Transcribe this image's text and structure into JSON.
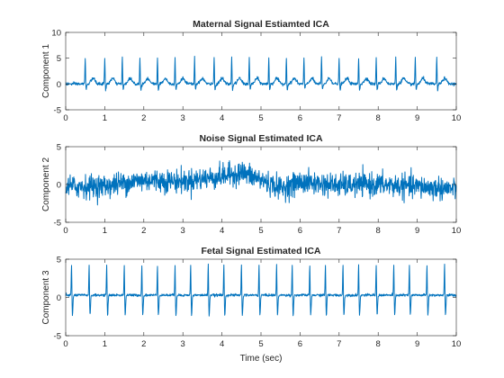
{
  "chart_data": [
    {
      "type": "line",
      "title": "Maternal Signal Estiamted ICA",
      "xlabel": "",
      "ylabel": "Component 1",
      "xlim": [
        0,
        10
      ],
      "ylim": [
        -5,
        10
      ],
      "xticks": [
        0,
        1,
        2,
        3,
        4,
        5,
        6,
        7,
        8,
        9,
        10
      ],
      "yticks": [
        -5,
        0,
        5,
        10
      ],
      "grid": false,
      "color": "#0072BD",
      "signal": {
        "kind": "ecg_peaks",
        "baseline": 0,
        "noise_sd": 0.15,
        "r_peak": 5.3,
        "s_dip": -1.2,
        "t_wave": 1.1,
        "beats_t": [
          0.5,
          1.0,
          1.45,
          1.9,
          2.35,
          2.8,
          3.3,
          3.8,
          4.25,
          4.7,
          5.2,
          5.65,
          6.1,
          6.55,
          7.0,
          7.5,
          7.95,
          8.45,
          8.95,
          9.5
        ]
      }
    },
    {
      "type": "line",
      "title": "Noise Signal Estimated ICA",
      "xlabel": "",
      "ylabel": "Component 2",
      "xlim": [
        0,
        10
      ],
      "ylim": [
        -5,
        5
      ],
      "xticks": [
        0,
        1,
        2,
        3,
        4,
        5,
        6,
        7,
        8,
        9,
        10
      ],
      "yticks": [
        -5,
        0,
        5
      ],
      "grid": false,
      "color": "#0072BD",
      "signal": {
        "kind": "noise",
        "noise_sd": 0.75,
        "trend_t": [
          0,
          1,
          2,
          3,
          4,
          4.5,
          5,
          5.5,
          6,
          7,
          8,
          9,
          10
        ],
        "trend_v": [
          -0.3,
          -0.2,
          0.6,
          0.4,
          1.1,
          1.6,
          0.6,
          -0.5,
          0.3,
          -0.1,
          0.0,
          -0.3,
          -0.6
        ]
      }
    },
    {
      "type": "line",
      "title": "Fetal Signal Estimated ICA",
      "xlabel": "Time (sec)",
      "ylabel": "Component 3",
      "xlim": [
        0,
        10
      ],
      "ylim": [
        -5,
        5
      ],
      "xticks": [
        0,
        1,
        2,
        3,
        4,
        5,
        6,
        7,
        8,
        9,
        10
      ],
      "yticks": [
        -5,
        0,
        5
      ],
      "grid": false,
      "color": "#0072BD",
      "signal": {
        "kind": "ecg_peaks",
        "baseline": 0.3,
        "noise_sd": 0.08,
        "r_peak": 4.4,
        "s_dip": -2.7,
        "t_wave": 0.0,
        "beats_t": [
          0.15,
          0.6,
          1.05,
          1.5,
          1.95,
          2.35,
          2.8,
          3.2,
          3.65,
          4.05,
          4.5,
          4.95,
          5.4,
          5.8,
          6.25,
          6.65,
          7.1,
          7.5,
          7.95,
          8.4,
          8.8,
          9.25,
          9.7
        ]
      }
    }
  ]
}
